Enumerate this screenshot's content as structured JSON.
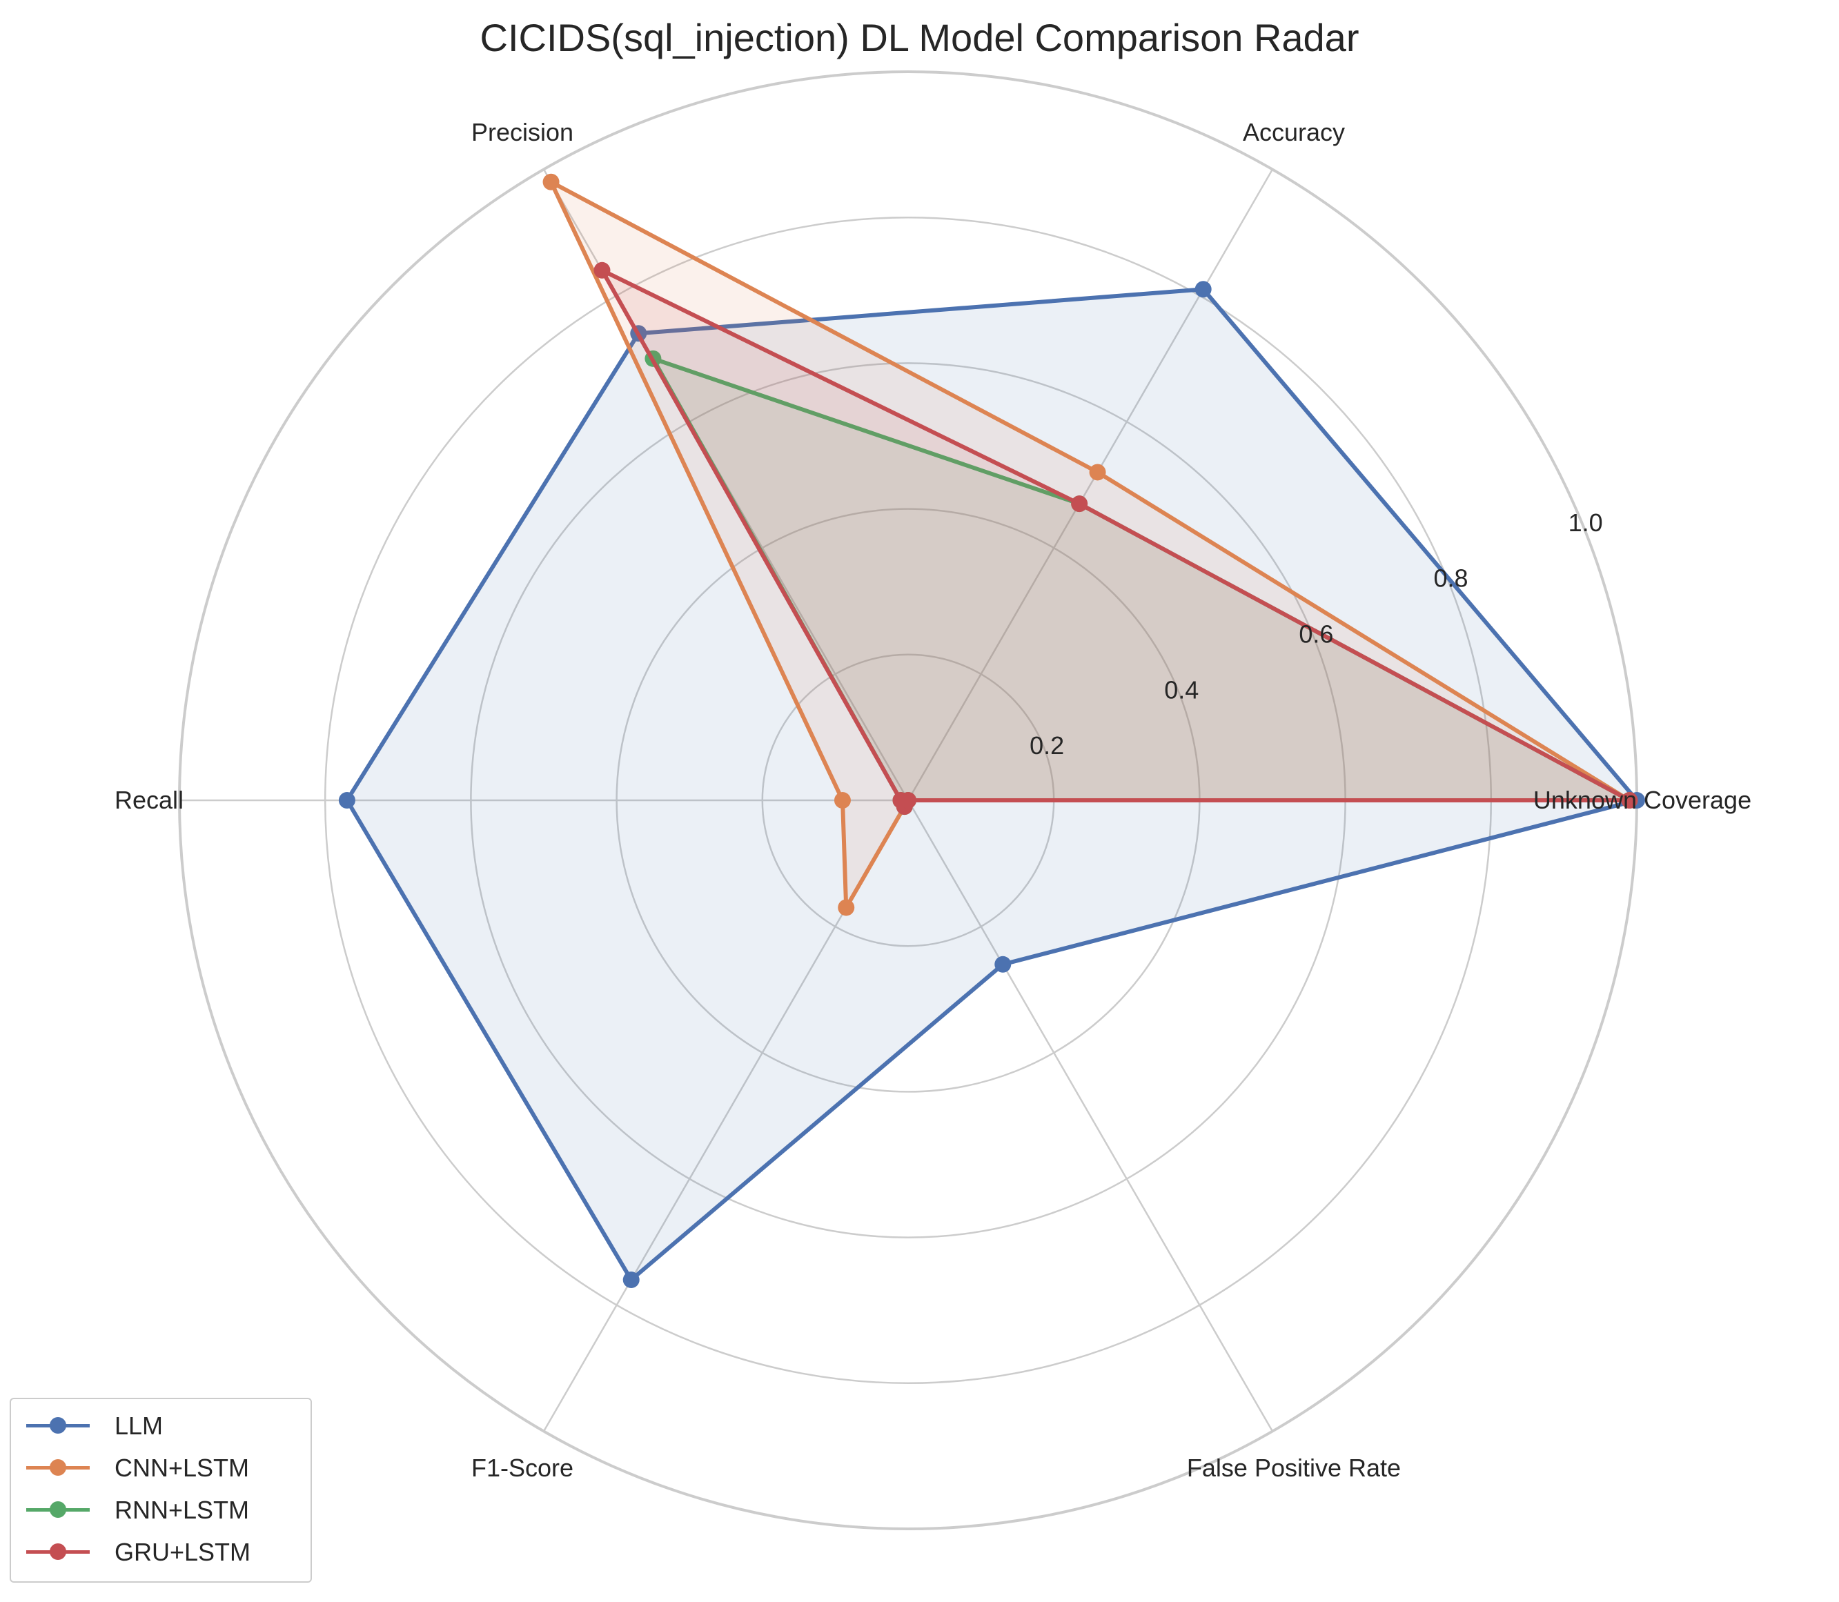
{
  "chart_data": {
    "type": "radar",
    "title": "CICIDS(sql_injection) DL Model Comparison Radar",
    "categories": [
      "Unknown Coverage",
      "Accuracy",
      "Precision",
      "Recall",
      "F1-Score",
      "False Positive Rate"
    ],
    "radial_ticks": [
      "0.2",
      "0.4",
      "0.6",
      "0.8",
      "1.0"
    ],
    "rlim": [
      0,
      1.0
    ],
    "grid": true,
    "legend_position": "lower-left",
    "series": [
      {
        "name": "LLM",
        "color": "#4c72b0",
        "values": [
          1.0,
          0.81,
          0.74,
          0.77,
          0.76,
          0.26
        ]
      },
      {
        "name": "CNN+LSTM",
        "color": "#dd8452",
        "values": [
          0.99,
          0.52,
          0.98,
          0.09,
          0.17,
          0.0
        ]
      },
      {
        "name": "RNN+LSTM",
        "color": "#55a868",
        "values": [
          0.99,
          0.47,
          0.7,
          0.01,
          0.01,
          0.0
        ]
      },
      {
        "name": "GRU+LSTM",
        "color": "#c44e52",
        "values": [
          0.99,
          0.47,
          0.84,
          0.01,
          0.01,
          0.0
        ]
      }
    ]
  }
}
